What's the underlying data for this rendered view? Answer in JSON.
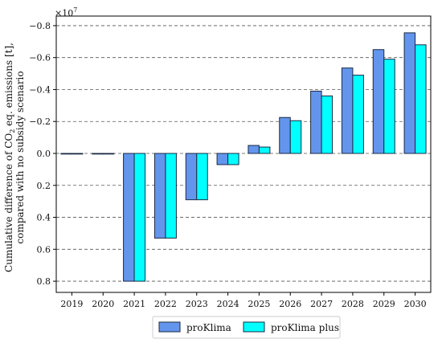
{
  "chart_data": {
    "type": "bar",
    "multiplier_label": "×10",
    "multiplier_exp": "7",
    "ylabel_line1_pre": "Cumulative difference of CO",
    "ylabel_line1_sub": "2",
    "ylabel_line1_post": " eq. emissions [t],",
    "ylabel_line2": "compared with no subsidy scenario",
    "categories": [
      "2019",
      "2020",
      "2021",
      "2022",
      "2023",
      "2024",
      "2025",
      "2026",
      "2027",
      "2028",
      "2029",
      "2030"
    ],
    "y_ticks": [
      {
        "value": -0.8,
        "label": "−0.8"
      },
      {
        "value": -0.6,
        "label": "−0.6"
      },
      {
        "value": -0.4,
        "label": "−0.4"
      },
      {
        "value": -0.2,
        "label": "−0.2"
      },
      {
        "value": 0.0,
        "label": "0.0"
      },
      {
        "value": 0.2,
        "label": "0.2"
      },
      {
        "value": 0.4,
        "label": "0.4"
      },
      {
        "value": 0.6,
        "label": "0.6"
      },
      {
        "value": 0.8,
        "label": "0.8"
      }
    ],
    "ylim": [
      -0.86,
      0.87
    ],
    "y_inverted": true,
    "grid": "horizontal dashed",
    "legend_position": "bottom",
    "series": [
      {
        "name": "proKlima",
        "color": "#6495ED",
        "values": [
          0,
          0,
          0.8,
          0.53,
          0.29,
          0.07,
          -0.05,
          -0.225,
          -0.39,
          -0.535,
          -0.65,
          -0.755
        ]
      },
      {
        "name": "proKlima plus",
        "color": "#00FFFF",
        "values": [
          0,
          0,
          0.8,
          0.53,
          0.29,
          0.07,
          -0.04,
          -0.205,
          -0.36,
          -0.49,
          -0.59,
          -0.68
        ]
      }
    ]
  }
}
